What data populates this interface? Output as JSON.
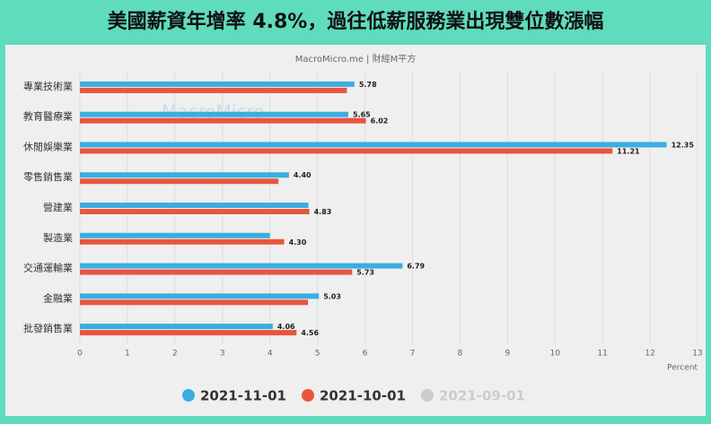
{
  "chart_data": {
    "type": "hbar",
    "title": "美國薪資年增率 4.8%，過往低薪服務業出現雙位數漲幅",
    "subtitle": "MacroMicro.me | 財經M平方",
    "watermark": "MacroMicro",
    "x_label": "Percent",
    "categories": [
      "專業技術業",
      "教育醫療業",
      "休閒娛樂業",
      "零售銷售業",
      "營建業",
      "製造業",
      "交通運輸業",
      "金融業",
      "批發銷售業"
    ],
    "series": [
      {
        "name": "2021-11-01",
        "color": "#3aaee0",
        "values": [
          5.78,
          5.65,
          12.35,
          4.4,
          4.81,
          4.0,
          6.79,
          5.03,
          4.06
        ],
        "value_labels": [
          "5.78",
          "5.65",
          "12.35",
          "4.40",
          null,
          null,
          "6.79",
          "5.03",
          "4.06"
        ]
      },
      {
        "name": "2021-10-01",
        "color": "#e8553f",
        "values": [
          5.62,
          6.02,
          11.21,
          4.18,
          4.83,
          4.3,
          5.73,
          4.8,
          4.56
        ],
        "value_labels": [
          null,
          "6.02",
          "11.21",
          null,
          "4.83",
          "4.30",
          "5.73",
          null,
          "4.56"
        ]
      },
      {
        "name": "2021-09-01",
        "color": "#cccccc",
        "values": [
          null,
          null,
          null,
          null,
          null,
          null,
          null,
          null,
          null
        ]
      }
    ],
    "xlim": [
      0,
      13
    ],
    "xticks": [
      0,
      1,
      2,
      3,
      4,
      5,
      6,
      7,
      8,
      9,
      10,
      11,
      12,
      13
    ],
    "grid": true
  }
}
